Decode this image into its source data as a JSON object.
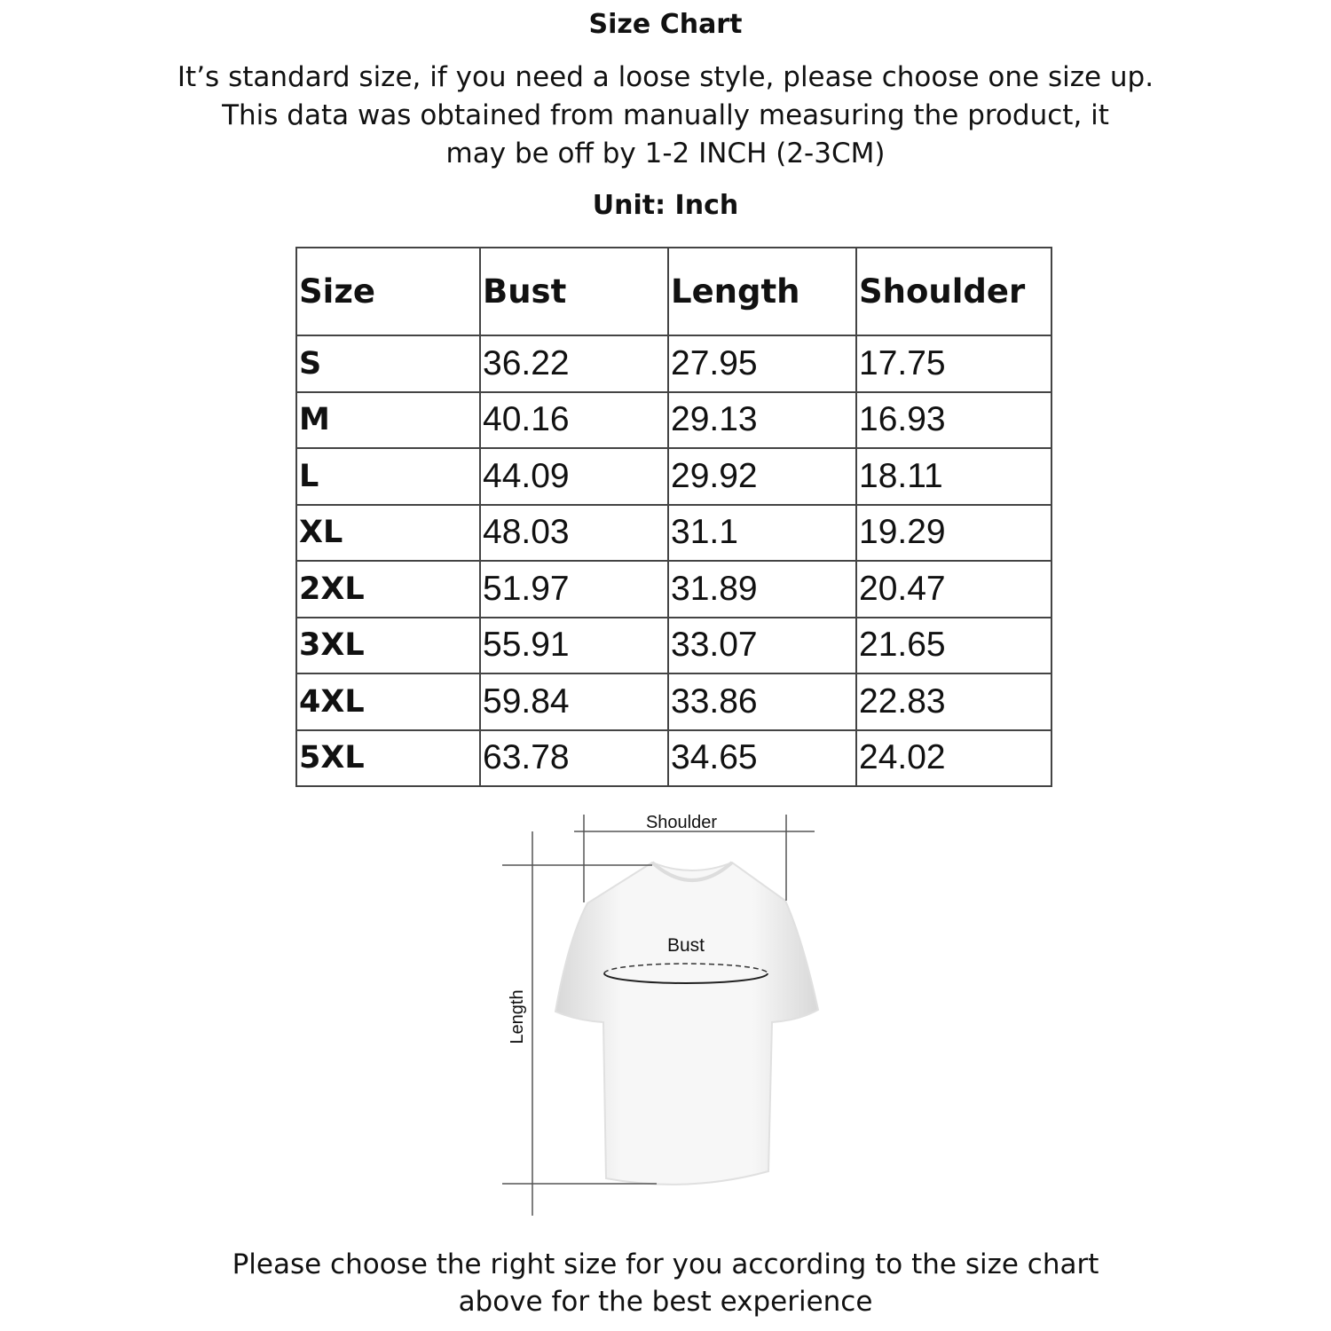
{
  "title": "Size Chart",
  "intro": {
    "line1": "It’s standard size, if you need a loose style, please choose one size up.",
    "line2": "This data was obtained from manually measuring the product, it",
    "line3": "may be off by 1-2 INCH (2-3CM)"
  },
  "unit": "Unit: Inch",
  "table": {
    "headers": [
      "Size",
      "Bust",
      "Length",
      "Shoulder"
    ],
    "rows": [
      [
        "S",
        "36.22",
        "27.95",
        "17.75"
      ],
      [
        "M",
        "40.16",
        "29.13",
        "16.93"
      ],
      [
        "L",
        "44.09",
        "29.92",
        "18.11"
      ],
      [
        "XL",
        "48.03",
        "31.1",
        "19.29"
      ],
      [
        "2XL",
        "51.97",
        "31.89",
        "20.47"
      ],
      [
        "3XL",
        "55.91",
        "33.07",
        "21.65"
      ],
      [
        "4XL",
        "59.84",
        "33.86",
        "22.83"
      ],
      [
        "5XL",
        "63.78",
        "34.65",
        "24.02"
      ]
    ]
  },
  "diagram": {
    "shoulder_label": "Shoulder",
    "bust_label": "Bust",
    "length_label": "Length"
  },
  "footer": {
    "line1": "Please choose the right size for you according to the size chart",
    "line2": "above for the best experience"
  }
}
